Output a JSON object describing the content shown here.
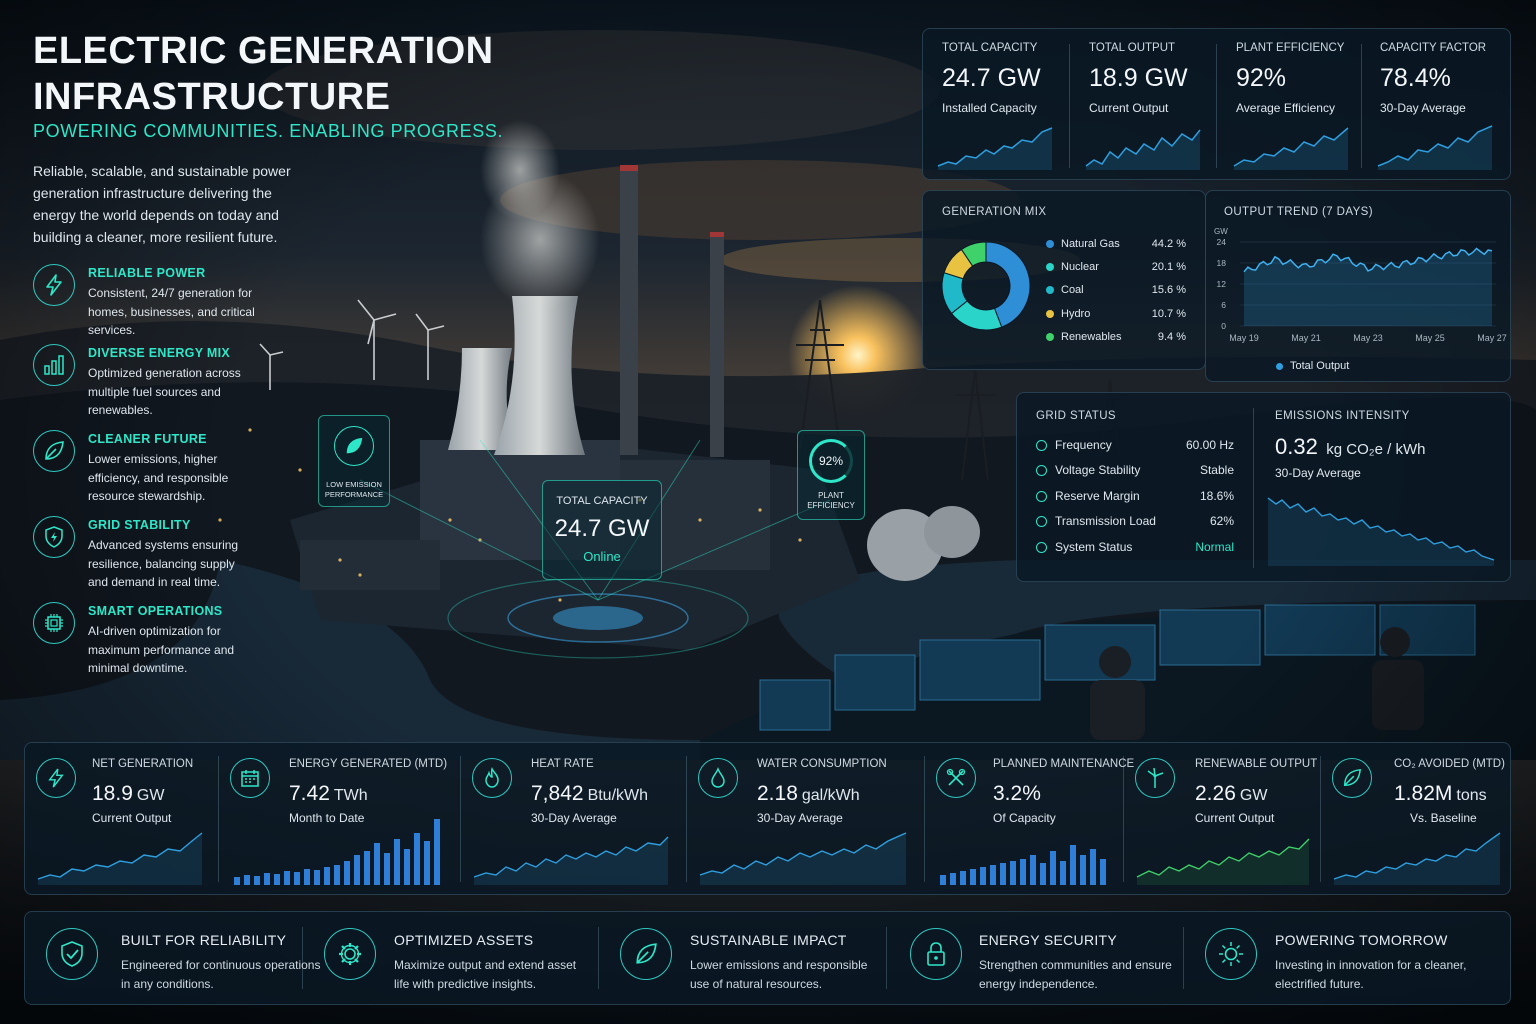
{
  "hero": {
    "title": "ELECTRIC GENERATION INFRASTRUCTURE",
    "subtitle": "POWERING COMMUNITIES. ENABLING PROGRESS.",
    "description": "Reliable, scalable, and sustainable power generation infrastructure delivering the energy the world depends on today and building a cleaner, more resilient future."
  },
  "features": [
    {
      "icon": "lightning-icon",
      "title": "RELIABLE POWER",
      "desc": "Consistent, 24/7 generation for homes, businesses, and critical services."
    },
    {
      "icon": "bar-chart-icon",
      "title": "DIVERSE ENERGY MIX",
      "desc": "Optimized generation across multiple fuel sources and renewables."
    },
    {
      "icon": "leaf-icon",
      "title": "CLEANER FUTURE",
      "desc": "Lower emissions, higher efficiency, and responsible resource stewardship."
    },
    {
      "icon": "shield-bolt-icon",
      "title": "GRID STABILITY",
      "desc": "Advanced systems ensuring resilience, balancing supply and demand in real time."
    },
    {
      "icon": "chip-icon",
      "title": "SMART OPERATIONS",
      "desc": "AI-driven optimization for maximum performance and minimal downtime."
    }
  ],
  "kpis": [
    {
      "label": "TOTAL CAPACITY",
      "value": "24.7 GW",
      "sub": "Installed Capacity"
    },
    {
      "label": "TOTAL OUTPUT",
      "value": "18.9 GW",
      "sub": "Current Output"
    },
    {
      "label": "PLANT EFFICIENCY",
      "value": "92%",
      "sub": "Average Efficiency"
    },
    {
      "label": "CAPACITY FACTOR",
      "value": "78.4%",
      "sub": "30-Day Average"
    }
  ],
  "generation_mix": {
    "title": "GENERATION MIX",
    "items": [
      {
        "name": "Natural Gas",
        "pct": "44.2 %",
        "value": 44.2,
        "color": "#2f8fd6"
      },
      {
        "name": "Nuclear",
        "pct": "20.1 %",
        "value": 20.1,
        "color": "#2ad4c8"
      },
      {
        "name": "Coal",
        "pct": "15.6 %",
        "value": 15.6,
        "color": "#1fb9c9"
      },
      {
        "name": "Hydro",
        "pct": "10.7 %",
        "value": 10.7,
        "color": "#e8c341"
      },
      {
        "name": "Renewables",
        "pct": "9.4 %",
        "value": 9.4,
        "color": "#3fd16a"
      }
    ]
  },
  "output_trend": {
    "title": "OUTPUT TREND (7 DAYS)",
    "unit": "GW",
    "legend": "Total Output",
    "yticks": [
      "24",
      "18",
      "12",
      "6",
      "0"
    ],
    "xticks": [
      "May 19",
      "May 21",
      "May 23",
      "May 25",
      "May 27"
    ]
  },
  "chart_data": {
    "type": "area",
    "title": "OUTPUT TREND (7 DAYS)",
    "ylabel": "GW",
    "ylim": [
      0,
      24
    ],
    "x": [
      "May 19",
      "May 20",
      "May 21",
      "May 22",
      "May 23",
      "May 24",
      "May 25",
      "May 26",
      "May 27"
    ],
    "series": [
      {
        "name": "Total Output",
        "values": [
          15.5,
          19,
          17,
          20,
          16.5,
          17.5,
          19.5,
          21,
          21.5
        ]
      }
    ]
  },
  "grid_status": {
    "title": "GRID STATUS",
    "rows": [
      {
        "label": "Frequency",
        "value": "60.00 Hz"
      },
      {
        "label": "Voltage Stability",
        "value": "Stable"
      },
      {
        "label": "Reserve Margin",
        "value": "18.6%"
      },
      {
        "label": "Transmission Load",
        "value": "62%"
      },
      {
        "label": "System Status",
        "value": "Normal"
      }
    ]
  },
  "emissions": {
    "title": "EMISSIONS INTENSITY",
    "value": "0.32",
    "unit": "kg CO₂e / kWh",
    "sub": "30-Day Average"
  },
  "holo": {
    "capacity_label": "TOTAL CAPACITY",
    "capacity_value": "24.7 GW",
    "capacity_status": "Online",
    "left_label": "LOW EMISSION PERFORMANCE",
    "right_value": "92%",
    "right_label": "PLANT EFFICIENCY"
  },
  "metrics": [
    {
      "icon": "lightning-icon",
      "label": "NET GENERATION",
      "value": "18.9",
      "unit": "GW",
      "sub": "Current Output"
    },
    {
      "icon": "calendar-icon",
      "label": "ENERGY GENERATED (MTD)",
      "value": "7.42",
      "unit": "TWh",
      "sub": "Month to Date"
    },
    {
      "icon": "flame-icon",
      "label": "HEAT RATE",
      "value": "7,842",
      "unit": "Btu/kWh",
      "sub": "30-Day Average"
    },
    {
      "icon": "water-drop-icon",
      "label": "WATER CONSUMPTION",
      "value": "2.18",
      "unit": "gal/kWh",
      "sub": "30-Day Average"
    },
    {
      "icon": "wrench-icon",
      "label": "PLANNED MAINTENANCE",
      "value": "3.2%",
      "unit": "",
      "sub": "Of Capacity"
    },
    {
      "icon": "wind-turbine-icon",
      "label": "RENEWABLE OUTPUT",
      "value": "2.26",
      "unit": "GW",
      "sub": "Current Output"
    },
    {
      "icon": "leaf-icon",
      "label": "CO₂ AVOIDED (MTD)",
      "value": "1.82M",
      "unit": "tons",
      "sub": "Vs. Baseline"
    }
  ],
  "footer": [
    {
      "icon": "shield-check-icon",
      "title": "BUILT FOR RELIABILITY",
      "desc": "Engineered for continuous operations in any conditions."
    },
    {
      "icon": "gear-icon",
      "title": "OPTIMIZED ASSETS",
      "desc": "Maximize output and extend asset life with predictive insights."
    },
    {
      "icon": "leaf-icon",
      "title": "SUSTAINABLE IMPACT",
      "desc": "Lower emissions and responsible use of natural resources."
    },
    {
      "icon": "lock-icon",
      "title": "ENERGY SECURITY",
      "desc": "Strengthen communities and ensure energy independence."
    },
    {
      "icon": "sun-icon",
      "title": "POWERING TOMORROW",
      "desc": "Investing in innovation for a cleaner, electrified future."
    }
  ],
  "colors": {
    "accent": "#2ee6c8",
    "line": "#2f9fe0",
    "bg": "#07121c"
  }
}
